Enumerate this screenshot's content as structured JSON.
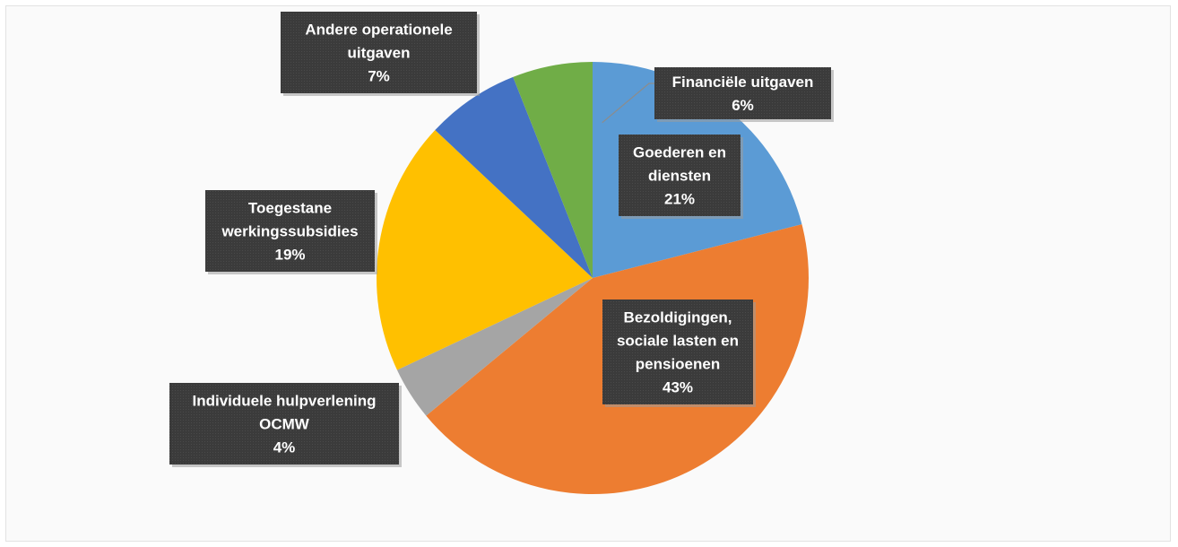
{
  "chart_data": {
    "type": "pie",
    "title": "",
    "slices": [
      {
        "label_lines": [
          "Goederen en",
          "diensten"
        ],
        "percent_label": "21%",
        "value": 21,
        "color": "#5b9bd5"
      },
      {
        "label_lines": [
          "Bezoldigingen,",
          "sociale lasten en",
          "pensioenen"
        ],
        "percent_label": "43%",
        "value": 43,
        "color": "#ed7d31"
      },
      {
        "label_lines": [
          "Individuele hulpverlening",
          "OCMW"
        ],
        "percent_label": "4%",
        "value": 4,
        "color": "#a5a5a5"
      },
      {
        "label_lines": [
          "Toegestane",
          "werkingssubsidies"
        ],
        "percent_label": "19%",
        "value": 19,
        "color": "#ffc000"
      },
      {
        "label_lines": [
          "Andere operationele",
          "uitgaven"
        ],
        "percent_label": "7%",
        "value": 7,
        "color": "#4472c4"
      },
      {
        "label_lines": [
          "Financiële uitgaven"
        ],
        "percent_label": "6%",
        "value": 6,
        "color": "#70ad47"
      }
    ],
    "start_angle_deg": 0,
    "direction": "clockwise",
    "legend": "none",
    "label_style": "dark-boxed-data-labels"
  }
}
